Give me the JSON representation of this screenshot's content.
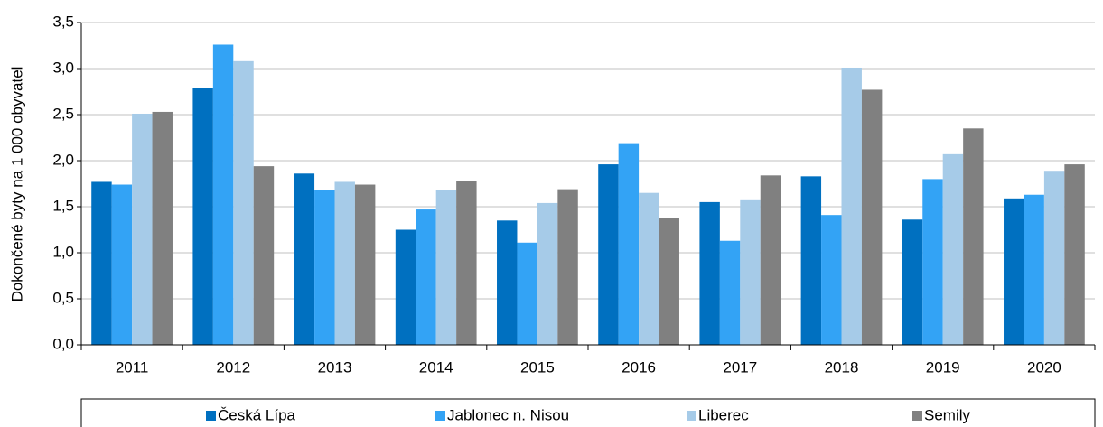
{
  "chart_data": {
    "type": "bar",
    "y_label": "Dokončené byty na 1 000 obyvatel",
    "categories": [
      "2011",
      "2012",
      "2013",
      "2014",
      "2015",
      "2016",
      "2017",
      "2018",
      "2019",
      "2020"
    ],
    "series": [
      {
        "name": "Česká Lípa",
        "color": "#0070c0",
        "values": [
          1.77,
          2.79,
          1.86,
          1.25,
          1.35,
          1.96,
          1.55,
          1.83,
          1.36,
          1.59
        ]
      },
      {
        "name": "Jablonec n. Nisou",
        "color": "#33a3f5",
        "values": [
          1.74,
          3.26,
          1.68,
          1.47,
          1.11,
          2.19,
          1.13,
          1.41,
          1.8,
          1.63
        ]
      },
      {
        "name": "Liberec",
        "color": "#a6cbe8",
        "values": [
          2.51,
          3.08,
          1.77,
          1.68,
          1.54,
          1.65,
          1.58,
          3.01,
          2.07,
          1.89
        ]
      },
      {
        "name": "Semily",
        "color": "#808080",
        "values": [
          2.53,
          1.94,
          1.74,
          1.78,
          1.69,
          1.38,
          1.84,
          2.77,
          2.35,
          1.96
        ]
      }
    ],
    "ylim": [
      0,
      3.5
    ],
    "yticks": [
      {
        "value": 0,
        "label": "0,0"
      },
      {
        "value": 0.5,
        "label": "0,5"
      },
      {
        "value": 1,
        "label": "1,0"
      },
      {
        "value": 1.5,
        "label": "1,5"
      },
      {
        "value": 2,
        "label": "2,0"
      },
      {
        "value": 2.5,
        "label": "2,5"
      },
      {
        "value": 3,
        "label": "3,0"
      },
      {
        "value": 3.5,
        "label": "3,5"
      }
    ],
    "grid": true
  }
}
